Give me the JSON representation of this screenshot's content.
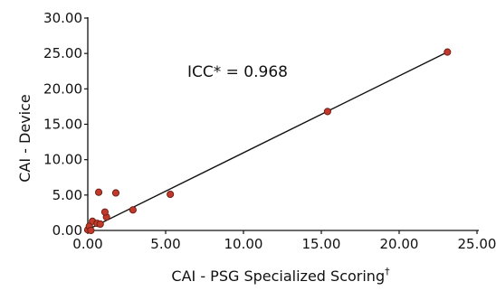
{
  "chart_data": {
    "type": "scatter",
    "xlabel": "CAI - PSG Specialized Scoring",
    "xlabel_sup": "†",
    "ylabel": "CAI - Device",
    "annotation": "ICC* = 0.968",
    "xlim": [
      0,
      25
    ],
    "ylim": [
      0,
      30
    ],
    "x_ticks": [
      "0.00",
      "5.00",
      "10.00",
      "15.00",
      "20.00",
      "25.00"
    ],
    "y_ticks": [
      "0.00",
      "5.00",
      "10.00",
      "15.00",
      "20.00",
      "25.00",
      "30.00"
    ],
    "x_tick_values": [
      0,
      5,
      10,
      15,
      20,
      25
    ],
    "y_tick_values": [
      0,
      5,
      10,
      15,
      20,
      25,
      30
    ],
    "grid": false,
    "marker_color": "#c0392b",
    "marker_edge": "#6b1a10",
    "line_color": "#111111",
    "trendline": {
      "x": [
        -0.2,
        23.1
      ],
      "y": [
        -0.1,
        25.2
      ]
    },
    "points": [
      {
        "x": 0.0,
        "y": 0.1
      },
      {
        "x": 0.1,
        "y": 0.6
      },
      {
        "x": 0.2,
        "y": 0.0
      },
      {
        "x": 0.3,
        "y": 1.3
      },
      {
        "x": 0.6,
        "y": 1.0
      },
      {
        "x": 0.8,
        "y": 0.9
      },
      {
        "x": 0.7,
        "y": 5.4
      },
      {
        "x": 1.2,
        "y": 1.9
      },
      {
        "x": 1.1,
        "y": 2.6
      },
      {
        "x": 1.8,
        "y": 5.3
      },
      {
        "x": 2.9,
        "y": 2.9
      },
      {
        "x": 5.3,
        "y": 5.1
      },
      {
        "x": 15.4,
        "y": 16.8
      },
      {
        "x": 23.1,
        "y": 25.2
      }
    ]
  }
}
